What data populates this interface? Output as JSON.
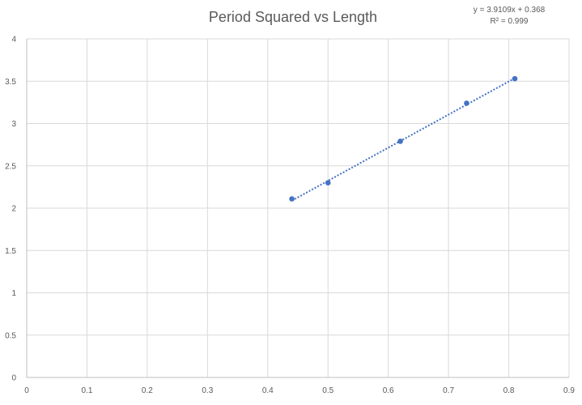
{
  "chart_data": {
    "type": "scatter",
    "title": "Period Squared vs Length",
    "xlabel": "",
    "ylabel": "",
    "xlim": [
      0,
      0.9
    ],
    "ylim": [
      0,
      4
    ],
    "x_ticks": [
      "0",
      "0.1",
      "0.2",
      "0.3",
      "0.4",
      "0.5",
      "0.6",
      "0.7",
      "0.8",
      "0.9"
    ],
    "y_ticks": [
      "0",
      "0.5",
      "1",
      "1.5",
      "2",
      "2.5",
      "3",
      "3.5",
      "4"
    ],
    "grid": true,
    "legend": "none",
    "series": [
      {
        "points": [
          {
            "x": 0.44,
            "y": 2.11
          },
          {
            "x": 0.5,
            "y": 2.3
          },
          {
            "x": 0.62,
            "y": 2.79
          },
          {
            "x": 0.73,
            "y": 3.24
          },
          {
            "x": 0.81,
            "y": 3.53
          }
        ],
        "color": "#4472c4"
      }
    ],
    "trendline": {
      "type": "linear",
      "slope": 3.9109,
      "intercept": 0.368,
      "x_range": [
        0.44,
        0.81
      ],
      "equation_label": "y = 3.9109x + 0.368",
      "r2_label": "R² = 0.999",
      "color": "#4472c4"
    }
  }
}
